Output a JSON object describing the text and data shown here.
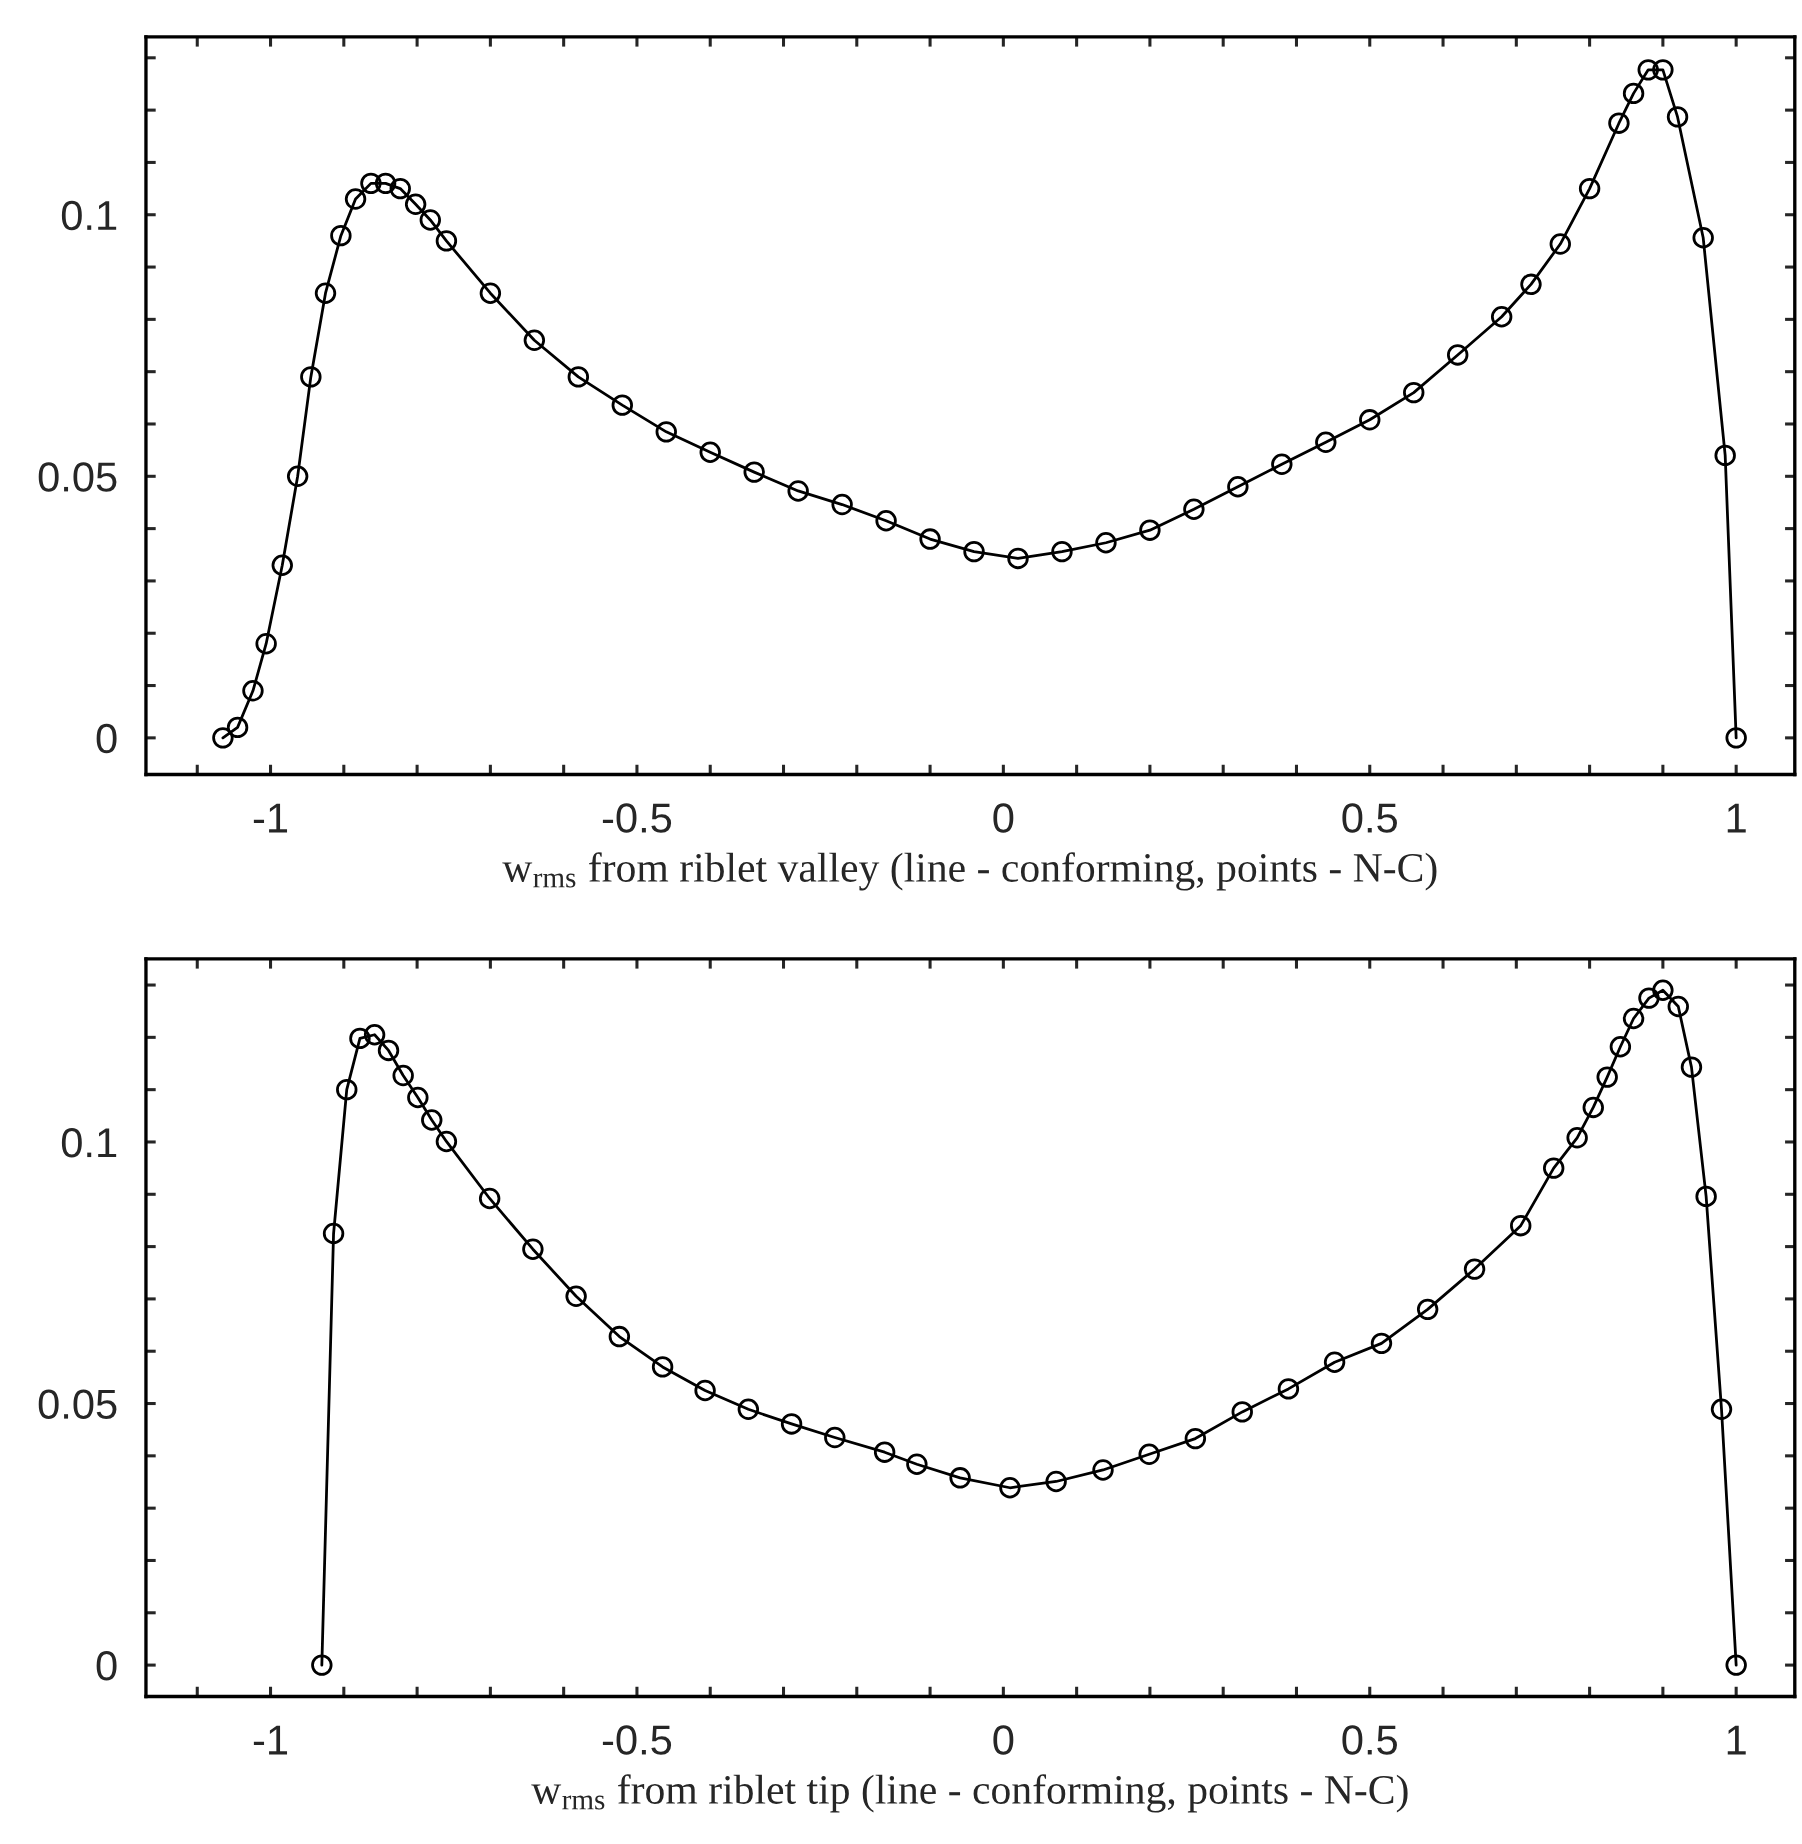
{
  "chart_data": [
    {
      "type": "line",
      "xlabel": "w$_{rms}$ from riblet valley (line - conforming, points - N-C)",
      "xlim": [
        -1.17,
        1.08
      ],
      "ylim": [
        -0.007,
        0.134
      ],
      "xticks": [
        {
          "value": -1.1,
          "label": null
        },
        {
          "value": -1,
          "label": "-1"
        },
        {
          "value": -0.9,
          "label": null
        },
        {
          "value": -0.8,
          "label": null
        },
        {
          "value": -0.7,
          "label": null
        },
        {
          "value": -0.6,
          "label": null
        },
        {
          "value": -0.5,
          "label": "-0.5"
        },
        {
          "value": -0.4,
          "label": null
        },
        {
          "value": -0.3,
          "label": null
        },
        {
          "value": -0.2,
          "label": null
        },
        {
          "value": -0.1,
          "label": null
        },
        0,
        {
          "value": 0.1,
          "label": null
        },
        {
          "value": 0.2,
          "label": null
        },
        {
          "value": 0.3,
          "label": null
        },
        {
          "value": 0.4,
          "label": null
        },
        0.5,
        {
          "value": 0.6,
          "label": null
        },
        {
          "value": 0.7,
          "label": null
        },
        {
          "value": 0.8,
          "label": null
        },
        {
          "value": 0.9,
          "label": null
        },
        1
      ],
      "yticks": [
        0,
        {
          "value": 0.01,
          "label": null
        },
        {
          "value": 0.02,
          "label": null
        },
        {
          "value": 0.03,
          "label": null
        },
        {
          "value": 0.04,
          "label": null
        },
        0.05,
        {
          "value": 0.06,
          "label": null
        },
        {
          "value": 0.07,
          "label": null
        },
        {
          "value": 0.08,
          "label": null
        },
        {
          "value": 0.09,
          "label": null
        },
        0.1,
        {
          "value": 0.11,
          "label": null
        },
        {
          "value": 0.12,
          "label": null
        },
        {
          "value": 0.13,
          "label": null
        }
      ],
      "grid": false,
      "legend": false,
      "series": [
        {
          "color": "#000000",
          "marker": "none",
          "line_style": "solid",
          "x": [
            -1.065,
            -1.045,
            -1.024,
            -1.006,
            -0.984,
            -0.963,
            -0.945,
            -0.925,
            -0.904,
            -0.884,
            -0.863,
            -0.843,
            -0.823,
            -0.802,
            -0.782,
            -0.76,
            -0.7,
            -0.64,
            -0.58,
            -0.52,
            -0.46,
            -0.4,
            -0.34,
            -0.28,
            -0.22,
            -0.16,
            -0.1,
            -0.04,
            0.02,
            0.08,
            0.14,
            0.2,
            0.26,
            0.32,
            0.38,
            0.44,
            0.5,
            0.56,
            0.62,
            0.68,
            0.72,
            0.76,
            0.8,
            0.84,
            0.86,
            0.88,
            0.9,
            0.92,
            0.955,
            0.985,
            1.0
          ],
          "values": [
            0.0,
            0.002,
            0.009,
            0.018,
            0.033,
            0.05,
            0.069,
            0.085,
            0.096,
            0.103,
            0.106,
            0.106,
            0.105,
            0.102,
            0.099,
            0.095,
            0.085,
            0.076,
            0.069,
            0.0636,
            0.0585,
            0.0546,
            0.0508,
            0.0472,
            0.0446,
            0.0415,
            0.038,
            0.0356,
            0.0343,
            0.0356,
            0.0373,
            0.0397,
            0.0437,
            0.048,
            0.0523,
            0.0565,
            0.0608,
            0.066,
            0.0732,
            0.0805,
            0.0867,
            0.0944,
            0.105,
            0.1175,
            0.1232,
            0.1277,
            0.1277,
            0.1187,
            0.0956,
            0.054,
            0.0
          ]
        },
        {
          "type": "scatter",
          "color": "#000000",
          "marker": "circle",
          "x": [
            -1.065,
            -1.045,
            -1.024,
            -1.006,
            -0.984,
            -0.963,
            -0.945,
            -0.925,
            -0.904,
            -0.884,
            -0.863,
            -0.843,
            -0.823,
            -0.802,
            -0.782,
            -0.76,
            -0.7,
            -0.64,
            -0.58,
            -0.52,
            -0.46,
            -0.4,
            -0.34,
            -0.28,
            -0.22,
            -0.16,
            -0.1,
            -0.04,
            0.02,
            0.08,
            0.14,
            0.2,
            0.26,
            0.32,
            0.38,
            0.44,
            0.5,
            0.56,
            0.62,
            0.68,
            0.72,
            0.76,
            0.8,
            0.84,
            0.86,
            0.88,
            0.9,
            0.92,
            0.955,
            0.985,
            1.0
          ],
          "values": [
            0.0,
            0.002,
            0.009,
            0.018,
            0.033,
            0.05,
            0.069,
            0.085,
            0.096,
            0.103,
            0.106,
            0.106,
            0.105,
            0.102,
            0.099,
            0.095,
            0.085,
            0.076,
            0.069,
            0.0636,
            0.0585,
            0.0546,
            0.0508,
            0.0472,
            0.0446,
            0.0415,
            0.038,
            0.0356,
            0.0343,
            0.0356,
            0.0373,
            0.0397,
            0.0437,
            0.048,
            0.0523,
            0.0565,
            0.0608,
            0.066,
            0.0732,
            0.0805,
            0.0867,
            0.0944,
            0.105,
            0.1175,
            0.1232,
            0.1277,
            0.1277,
            0.1187,
            0.0956,
            0.054,
            0.0
          ]
        }
      ]
    },
    {
      "type": "line",
      "xlabel": "w$_{rms}$ from riblet tip (line - conforming, points - N-C)",
      "xlim": [
        -1.17,
        1.08
      ],
      "ylim": [
        -0.006,
        0.135
      ],
      "xticks": [
        {
          "value": -1.1,
          "label": null
        },
        {
          "value": -1,
          "label": "-1"
        },
        {
          "value": -0.9,
          "label": null
        },
        {
          "value": -0.8,
          "label": null
        },
        {
          "value": -0.7,
          "label": null
        },
        {
          "value": -0.6,
          "label": null
        },
        {
          "value": -0.5,
          "label": "-0.5"
        },
        {
          "value": -0.4,
          "label": null
        },
        {
          "value": -0.3,
          "label": null
        },
        {
          "value": -0.2,
          "label": null
        },
        {
          "value": -0.1,
          "label": null
        },
        0,
        {
          "value": 0.1,
          "label": null
        },
        {
          "value": 0.2,
          "label": null
        },
        {
          "value": 0.3,
          "label": null
        },
        {
          "value": 0.4,
          "label": null
        },
        0.5,
        {
          "value": 0.6,
          "label": null
        },
        {
          "value": 0.7,
          "label": null
        },
        {
          "value": 0.8,
          "label": null
        },
        {
          "value": 0.9,
          "label": null
        },
        1
      ],
      "yticks": [
        0,
        {
          "value": 0.01,
          "label": null
        },
        {
          "value": 0.02,
          "label": null
        },
        {
          "value": 0.03,
          "label": null
        },
        {
          "value": 0.04,
          "label": null
        },
        0.05,
        {
          "value": 0.06,
          "label": null
        },
        {
          "value": 0.07,
          "label": null
        },
        {
          "value": 0.08,
          "label": null
        },
        {
          "value": 0.09,
          "label": null
        },
        0.1,
        {
          "value": 0.11,
          "label": null
        },
        {
          "value": 0.12,
          "label": null
        },
        {
          "value": 0.13,
          "label": null
        }
      ],
      "grid": false,
      "legend": false,
      "series": [
        {
          "color": "#000000",
          "marker": "none",
          "line_style": "solid",
          "x": [
            -0.93,
            -0.914,
            -0.896,
            -0.878,
            -0.858,
            -0.839,
            -0.819,
            -0.799,
            -0.78,
            -0.76,
            -0.701,
            -0.642,
            -0.583,
            -0.524,
            -0.465,
            -0.407,
            -0.348,
            -0.289,
            -0.23,
            -0.162,
            -0.118,
            -0.059,
            0.009,
            0.072,
            0.136,
            0.199,
            0.262,
            0.326,
            0.389,
            0.452,
            0.516,
            0.579,
            0.643,
            0.706,
            0.751,
            0.783,
            0.805,
            0.824,
            0.842,
            0.86,
            0.881,
            0.9,
            0.921,
            0.939,
            0.959,
            0.98,
            1.0
          ],
          "values": [
            0.0,
            0.0825,
            0.11,
            0.1198,
            0.1205,
            0.1175,
            0.1127,
            0.1085,
            0.1042,
            0.1001,
            0.0892,
            0.0795,
            0.0705,
            0.0628,
            0.057,
            0.0525,
            0.0489,
            0.0461,
            0.0435,
            0.0407,
            0.0384,
            0.0358,
            0.0339,
            0.0351,
            0.0373,
            0.0403,
            0.0433,
            0.0484,
            0.0528,
            0.0579,
            0.0615,
            0.068,
            0.0757,
            0.084,
            0.095,
            0.1008,
            0.1066,
            0.1124,
            0.1182,
            0.1236,
            0.1275,
            0.129,
            0.1259,
            0.1143,
            0.0896,
            0.0489,
            0.0
          ]
        },
        {
          "type": "scatter",
          "color": "#000000",
          "marker": "circle",
          "x": [
            -0.93,
            -0.914,
            -0.896,
            -0.878,
            -0.858,
            -0.839,
            -0.819,
            -0.799,
            -0.78,
            -0.76,
            -0.701,
            -0.642,
            -0.583,
            -0.524,
            -0.465,
            -0.407,
            -0.348,
            -0.289,
            -0.23,
            -0.162,
            -0.118,
            -0.059,
            0.009,
            0.072,
            0.136,
            0.199,
            0.262,
            0.326,
            0.389,
            0.452,
            0.516,
            0.579,
            0.643,
            0.706,
            0.751,
            0.783,
            0.805,
            0.824,
            0.842,
            0.86,
            0.881,
            0.9,
            0.921,
            0.939,
            0.959,
            0.98,
            1.0
          ],
          "values": [
            0.0,
            0.0825,
            0.11,
            0.1198,
            0.1205,
            0.1175,
            0.1127,
            0.1085,
            0.1042,
            0.1001,
            0.0892,
            0.0795,
            0.0705,
            0.0628,
            0.057,
            0.0525,
            0.0489,
            0.0461,
            0.0435,
            0.0407,
            0.0384,
            0.0358,
            0.0339,
            0.0351,
            0.0373,
            0.0403,
            0.0433,
            0.0484,
            0.0528,
            0.0579,
            0.0615,
            0.068,
            0.0757,
            0.084,
            0.095,
            0.1008,
            0.1066,
            0.1124,
            0.1182,
            0.1236,
            0.1275,
            0.129,
            0.1259,
            0.1143,
            0.0896,
            0.0489,
            0.0
          ]
        }
      ]
    }
  ]
}
